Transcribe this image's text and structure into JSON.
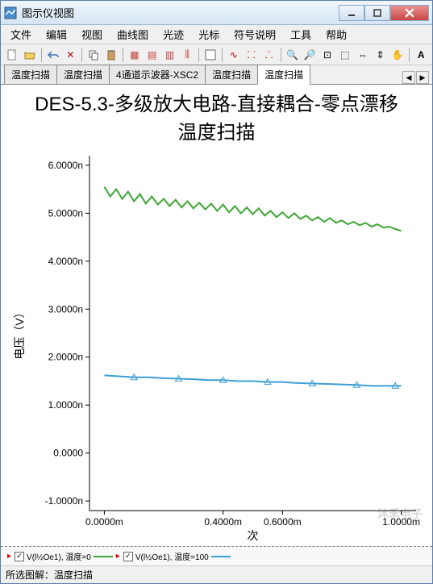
{
  "window": {
    "title": "图示仪视图"
  },
  "menu": [
    "文件",
    "编辑",
    "视图",
    "曲线图",
    "光迹",
    "光标",
    "符号说明",
    "工具",
    "帮助"
  ],
  "tabs": {
    "items": [
      "温度扫描",
      "温度扫描",
      "4通道示波器-XSC2",
      "温度扫描",
      "温度扫描"
    ],
    "active_index": 4
  },
  "chart": {
    "title_line1": "DES-5.3-多级放大电路-直接耦合-零点漂移",
    "title_line2": "温度扫描",
    "y_label": "电压（V）",
    "x_label": "次",
    "y_ticks": [
      "-1.0000n",
      "0.0000",
      "1.0000n",
      "2.0000n",
      "3.0000n",
      "4.0000n",
      "5.0000n",
      "6.0000n"
    ],
    "x_ticks": [
      "0.0000m",
      "0.4000m",
      "0.6000m",
      "1.0000m"
    ],
    "ylim": [
      -1.2,
      6.2
    ],
    "xlim": [
      -0.05,
      1.05
    ],
    "series": [
      {
        "name": "V(l½Oe1), 温度=0",
        "color": "#3fa535",
        "width": 2,
        "data": [
          [
            0,
            5.55
          ],
          [
            0.02,
            5.35
          ],
          [
            0.04,
            5.5
          ],
          [
            0.06,
            5.3
          ],
          [
            0.08,
            5.45
          ],
          [
            0.1,
            5.25
          ],
          [
            0.12,
            5.4
          ],
          [
            0.14,
            5.2
          ],
          [
            0.16,
            5.35
          ],
          [
            0.18,
            5.18
          ],
          [
            0.2,
            5.3
          ],
          [
            0.22,
            5.15
          ],
          [
            0.24,
            5.28
          ],
          [
            0.26,
            5.12
          ],
          [
            0.28,
            5.25
          ],
          [
            0.3,
            5.1
          ],
          [
            0.32,
            5.22
          ],
          [
            0.34,
            5.08
          ],
          [
            0.36,
            5.2
          ],
          [
            0.38,
            5.05
          ],
          [
            0.4,
            5.18
          ],
          [
            0.42,
            5.02
          ],
          [
            0.44,
            5.15
          ],
          [
            0.46,
            5.0
          ],
          [
            0.48,
            5.12
          ],
          [
            0.5,
            4.98
          ],
          [
            0.52,
            5.1
          ],
          [
            0.54,
            4.95
          ],
          [
            0.56,
            5.05
          ],
          [
            0.58,
            4.92
          ],
          [
            0.6,
            5.02
          ],
          [
            0.62,
            4.9
          ],
          [
            0.64,
            5.0
          ],
          [
            0.66,
            4.88
          ],
          [
            0.68,
            4.95
          ],
          [
            0.7,
            4.85
          ],
          [
            0.72,
            4.92
          ],
          [
            0.74,
            4.82
          ],
          [
            0.76,
            4.9
          ],
          [
            0.78,
            4.8
          ],
          [
            0.8,
            4.85
          ],
          [
            0.82,
            4.77
          ],
          [
            0.84,
            4.82
          ],
          [
            0.86,
            4.75
          ],
          [
            0.88,
            4.8
          ],
          [
            0.9,
            4.72
          ],
          [
            0.92,
            4.77
          ],
          [
            0.94,
            4.7
          ],
          [
            0.96,
            4.72
          ],
          [
            0.98,
            4.67
          ],
          [
            1.0,
            4.63
          ]
        ]
      },
      {
        "name": "V(l½Oe1), 温度=100",
        "color": "#3e9fd4",
        "width": 2,
        "markers_x": [
          0.1,
          0.25,
          0.4,
          0.55,
          0.7,
          0.85,
          0.98
        ],
        "data": [
          [
            0,
            1.62
          ],
          [
            0.05,
            1.6
          ],
          [
            0.1,
            1.58
          ],
          [
            0.15,
            1.58
          ],
          [
            0.2,
            1.56
          ],
          [
            0.25,
            1.55
          ],
          [
            0.3,
            1.54
          ],
          [
            0.35,
            1.52
          ],
          [
            0.4,
            1.52
          ],
          [
            0.45,
            1.5
          ],
          [
            0.5,
            1.5
          ],
          [
            0.55,
            1.48
          ],
          [
            0.6,
            1.48
          ],
          [
            0.65,
            1.46
          ],
          [
            0.7,
            1.45
          ],
          [
            0.75,
            1.44
          ],
          [
            0.8,
            1.43
          ],
          [
            0.85,
            1.42
          ],
          [
            0.9,
            1.4
          ],
          [
            0.95,
            1.4
          ],
          [
            1.0,
            1.4
          ]
        ]
      }
    ],
    "axis_color": "#000000",
    "background": "#ffffff"
  },
  "legend": [
    {
      "label": "V(l½Oe1), 温度=0",
      "color": "#3fa535",
      "checked": true
    },
    {
      "label": "V(l½Oe1), 温度=100",
      "color": "#3e9fd4",
      "checked": true
    }
  ],
  "statusbar": {
    "label": "所选图解：",
    "value": "温度扫描"
  },
  "watermark": "沐禾电子"
}
